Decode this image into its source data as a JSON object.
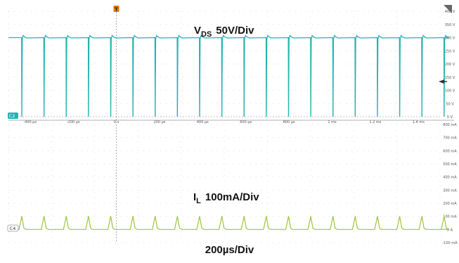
{
  "colors": {
    "ch2": "#23b3b1",
    "ch4": "#9bc53d",
    "grid": "#bdbdbd",
    "marker_trigger": "#e07b00"
  },
  "markers": {
    "trigger": "T",
    "channel_top": "C2",
    "channel_bottom": "C4"
  },
  "chart_data": [
    {
      "type": "line",
      "name": "VDS",
      "title_main": "V",
      "title_sub": "DS",
      "title_scale": "50V/Div",
      "ylim": [
        0,
        400
      ],
      "y_tick_labels": [
        "400 V",
        "350 V",
        "300 V",
        "250 V",
        "200 V",
        "150 V",
        "100 V",
        "50 V",
        "0 V"
      ],
      "x_tick_labels": [
        "-400 µs",
        "-200 µs",
        "0 s",
        "200 µs",
        "400 µs",
        "600 µs",
        "800 µs",
        "1 ms",
        "1.2 ms",
        "1.4 ms"
      ],
      "baseline_level": 300,
      "pulse_level": 0,
      "pulse_times_us": [
        -438,
        -335,
        -232,
        -129,
        -26,
        77,
        180,
        283,
        386,
        489,
        592,
        695,
        798,
        901,
        1004,
        1107,
        1210,
        1313,
        1416,
        1519
      ],
      "grid": true
    },
    {
      "type": "line",
      "name": "IL",
      "title_main": "I",
      "title_sub": "L",
      "title_scale": "100mA/Div",
      "ylim": [
        -100,
        800
      ],
      "y_tick_labels": [
        "800 mA",
        "700 mA",
        "600 mA",
        "500 mA",
        "400 mA",
        "300 mA",
        "200 mA",
        "100 mA",
        "0 A",
        "-100 mA"
      ],
      "baseline_level": 0,
      "peak_level": 100,
      "grid": true
    }
  ],
  "timebase": "200µs/Div"
}
